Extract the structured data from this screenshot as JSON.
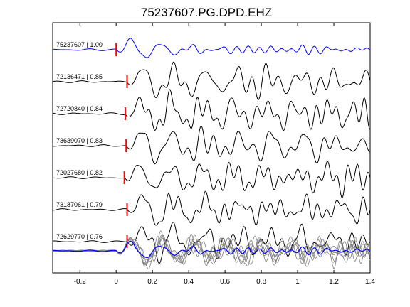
{
  "chart_data": {
    "type": "line",
    "title": "75237607.PG.DPD.EHZ",
    "xlabel": "",
    "ylabel": "",
    "xlim": [
      -0.35,
      1.4
    ],
    "xticks": [
      -0.2,
      0,
      0.2,
      0.4,
      0.6,
      0.8,
      1,
      1.2,
      1.4
    ],
    "xtick_labels": [
      "-0.2",
      "0",
      "0.2",
      "0.4",
      "0.6",
      "0.8",
      "1",
      "1.2",
      "1.4"
    ],
    "grid": false,
    "colors": {
      "reference": "#0000ff",
      "trace": "#000000",
      "stack": "#808080",
      "pick": "#ff0000"
    },
    "traces": [
      {
        "label": "75237607 | 1.00",
        "pick_time": 0.0,
        "reference": true,
        "wave": {
          "onset": 0.0,
          "amp": 1.0,
          "freq": 5.9,
          "decay": 3.2,
          "noise": 0.12,
          "seed": 1
        }
      },
      {
        "label": "72136471 | 0.85",
        "pick_time": 0.06,
        "reference": false,
        "wave": {
          "onset": 0.06,
          "amp": 1.0,
          "freq": 5.7,
          "decay": 0.9,
          "noise": 0.35,
          "seed": 2
        }
      },
      {
        "label": "72720840 | 0.84",
        "pick_time": 0.05,
        "reference": false,
        "wave": {
          "onset": 0.05,
          "amp": 1.0,
          "freq": 5.8,
          "decay": 0.8,
          "noise": 0.4,
          "seed": 3
        }
      },
      {
        "label": "73639070 | 0.83",
        "pick_time": 0.055,
        "reference": false,
        "wave": {
          "onset": 0.055,
          "amp": 1.0,
          "freq": 5.6,
          "decay": 0.7,
          "noise": 0.38,
          "seed": 4
        }
      },
      {
        "label": "72027680 | 0.82",
        "pick_time": 0.045,
        "reference": false,
        "wave": {
          "onset": 0.045,
          "amp": 1.0,
          "freq": 5.8,
          "decay": 0.8,
          "noise": 0.4,
          "seed": 5
        }
      },
      {
        "label": "73187061 | 0.79",
        "pick_time": 0.06,
        "reference": false,
        "wave": {
          "onset": 0.06,
          "amp": 1.0,
          "freq": 5.6,
          "decay": 0.9,
          "noise": 0.38,
          "seed": 6
        }
      },
      {
        "label": "72629770 | 0.76",
        "pick_time": 0.06,
        "reference": false,
        "wave": {
          "onset": 0.06,
          "amp": 1.0,
          "freq": 5.7,
          "decay": 0.9,
          "noise": 0.42,
          "seed": 7
        }
      }
    ]
  }
}
